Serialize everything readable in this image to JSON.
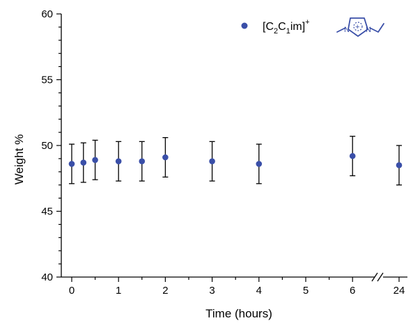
{
  "chart_data": {
    "type": "scatter",
    "xlabel": "Time (hours)",
    "ylabel": "Weight %",
    "ylim": [
      40,
      60
    ],
    "yticks": [
      "40",
      "45",
      "50",
      "55",
      "60"
    ],
    "xticks": [
      "0",
      "1",
      "2",
      "3",
      "4",
      "5",
      "6",
      "24"
    ],
    "x_axis_break": "between 6 and 24",
    "grid": false,
    "legend_position": "top-right",
    "series": [
      {
        "name": "[C2C1im]+",
        "color": "#3a4fa8",
        "marker": "circle",
        "x": [
          0,
          0.25,
          0.5,
          1,
          1.5,
          2,
          3,
          4,
          6,
          24
        ],
        "y": [
          48.6,
          48.7,
          48.9,
          48.8,
          48.8,
          49.1,
          48.8,
          48.6,
          49.2,
          48.5
        ],
        "error": [
          1.5,
          1.5,
          1.5,
          1.5,
          1.5,
          1.5,
          1.5,
          1.5,
          1.5,
          1.5
        ]
      }
    ]
  },
  "legend": {
    "label_base": "[C",
    "sub1": "2",
    "mid": "C",
    "sub2": "1",
    "tail": "im]",
    "sup": "+",
    "structure_n1": "N",
    "structure_n2": "N",
    "structure_charge": "+",
    "icon": "imidazolium-structure-icon"
  }
}
